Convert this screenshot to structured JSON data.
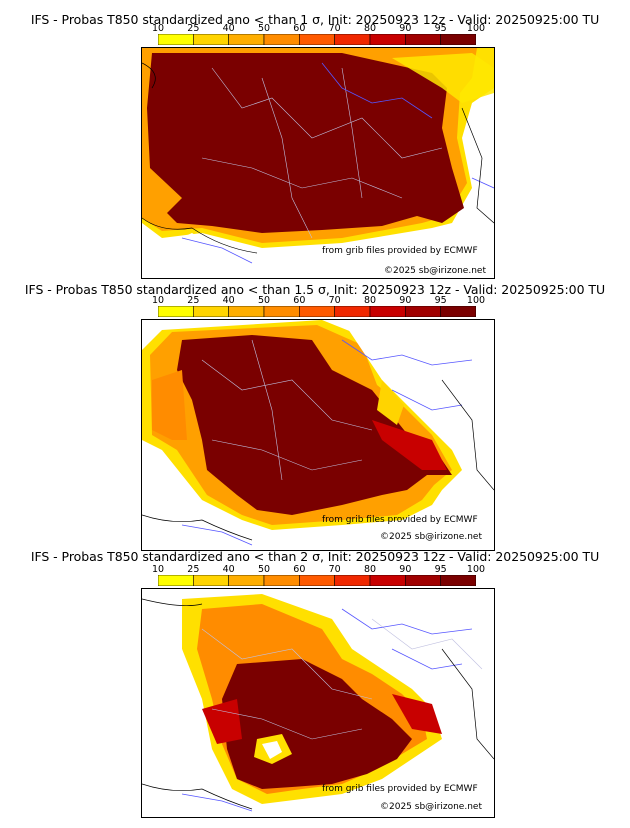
{
  "colorbar": {
    "ticks": [
      "10",
      "25",
      "40",
      "50",
      "60",
      "70",
      "80",
      "90",
      "95",
      "100"
    ],
    "colors": [
      "#ffff00",
      "#ffd400",
      "#ffae00",
      "#ff8c00",
      "#ff5a00",
      "#f02800",
      "#c80000",
      "#a00000",
      "#7a0000"
    ]
  },
  "panels": [
    {
      "title": "IFS - Probas T850  standardized ano < than 1 σ, Init: 20250923 12z - Valid: 20250925:00 TU",
      "credit_source": "from grib files provided by ECMWF",
      "credit_copyright": "©2025 sb@irizone.net"
    },
    {
      "title": "IFS - Probas T850  standardized ano < than 1.5 σ, Init: 20250923 12z - Valid: 20250925:00 TU",
      "credit_source": "from grib files provided by ECMWF",
      "credit_copyright": "©2025 sb@irizone.net"
    },
    {
      "title": "IFS - Probas T850  standardized ano < than 2 σ, Init: 20250923 12z - Valid: 20250925:00 TU",
      "credit_source": "from grib files provided by ECMWF",
      "credit_copyright": "©2025 sb@irizone.net"
    }
  ]
}
